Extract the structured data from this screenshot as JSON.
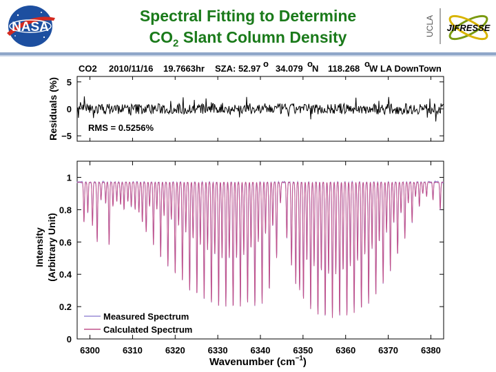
{
  "title": {
    "line1": "Spectral Fitting to Determine",
    "line2_prefix": "CO",
    "line2_sub": "2",
    "line2_suffix": " Slant Column Density"
  },
  "logos": {
    "nasa": "NASA",
    "ucla": "UCLA",
    "jifresse": "JIFRESSE"
  },
  "colors": {
    "title": "#1a7a1a",
    "measured": "#9a8cd6",
    "calculated": "#c0508a",
    "residual": "#000000"
  },
  "chart_data": [
    {
      "type": "line",
      "panel": "residuals",
      "header": {
        "species": "CO2",
        "date": "2010/11/16",
        "time": "19.7663hr",
        "sza": "SZA: 52.97",
        "deg": "o",
        "lat": "34.079",
        "lat_unit": "N",
        "lon": "118.268",
        "lon_unit": "W",
        "site": "LA DownTown"
      },
      "ylabel": "Residuals (%)",
      "ylim": [
        -6,
        6
      ],
      "yticks": [
        5,
        0,
        -5
      ],
      "ytick_labels": [
        "5",
        "0",
        "−5"
      ],
      "xlim": [
        6297,
        6383
      ],
      "annotation": "RMS = 0.5256%",
      "series": [
        {
          "values_description_rms": 0.5256
        }
      ]
    },
    {
      "type": "line",
      "panel": "spectrum",
      "ylabel_line1": "Intensity",
      "ylabel_line2": "(Arbitrary Unit)",
      "xlabel_prefix": "Wavenumber (cm",
      "xlabel_sup": "−1",
      "xlabel_suffix": ")",
      "xlim": [
        6297,
        6383
      ],
      "ylim": [
        0,
        1.1
      ],
      "xticks": [
        6300,
        6310,
        6320,
        6330,
        6340,
        6350,
        6360,
        6370,
        6380
      ],
      "yticks": [
        0,
        0.2,
        0.4,
        0.6,
        0.8,
        1
      ],
      "ytick_labels": [
        "0",
        "0.2",
        "0.4",
        "0.6",
        "0.8",
        "1"
      ],
      "legend_position": "bottom-left",
      "series": [
        {
          "name": "Measured Spectrum",
          "continuum": 0.97
        },
        {
          "name": "Calculated Spectrum",
          "continuum": 0.97
        }
      ],
      "absorption_lines": [
        [
          6298.6,
          0.72
        ],
        [
          6299.5,
          0.78
        ],
        [
          6300.6,
          0.7
        ],
        [
          6301.7,
          0.6
        ],
        [
          6302.6,
          0.86
        ],
        [
          6303.7,
          0.84
        ],
        [
          6304.5,
          0.58
        ],
        [
          6305.4,
          0.82
        ],
        [
          6306.3,
          0.85
        ],
        [
          6307.2,
          0.83
        ],
        [
          6308.0,
          0.8
        ],
        [
          6308.9,
          0.85
        ],
        [
          6309.7,
          0.82
        ],
        [
          6310.6,
          0.8
        ],
        [
          6311.5,
          0.78
        ],
        [
          6312.3,
          0.72
        ],
        [
          6313.2,
          0.66
        ],
        [
          6314.0,
          0.82
        ],
        [
          6314.9,
          0.58
        ],
        [
          6315.7,
          0.8
        ],
        [
          6316.6,
          0.5
        ],
        [
          6317.4,
          0.76
        ],
        [
          6318.3,
          0.45
        ],
        [
          6319.1,
          0.74
        ],
        [
          6320.0,
          0.4
        ],
        [
          6320.8,
          0.7
        ],
        [
          6321.7,
          0.36
        ],
        [
          6322.5,
          0.66
        ],
        [
          6323.4,
          0.3
        ],
        [
          6324.2,
          0.62
        ],
        [
          6325.1,
          0.27
        ],
        [
          6325.9,
          0.58
        ],
        [
          6326.8,
          0.25
        ],
        [
          6327.6,
          0.55
        ],
        [
          6328.5,
          0.22
        ],
        [
          6329.3,
          0.52
        ],
        [
          6330.2,
          0.2
        ],
        [
          6331.0,
          0.5
        ],
        [
          6331.9,
          0.2
        ],
        [
          6332.7,
          0.5
        ],
        [
          6333.6,
          0.19
        ],
        [
          6334.4,
          0.5
        ],
        [
          6335.3,
          0.2
        ],
        [
          6336.1,
          0.52
        ],
        [
          6337.0,
          0.22
        ],
        [
          6337.8,
          0.56
        ],
        [
          6338.7,
          0.2
        ],
        [
          6339.5,
          0.6
        ],
        [
          6340.4,
          0.22
        ],
        [
          6341.2,
          0.65
        ],
        [
          6342.1,
          0.3
        ],
        [
          6342.9,
          0.7
        ],
        [
          6343.8,
          0.5
        ],
        [
          6344.7,
          0.84
        ],
        [
          6346.2,
          0.62
        ],
        [
          6347.3,
          0.45
        ],
        [
          6348.3,
          0.34
        ],
        [
          6349.2,
          0.3
        ],
        [
          6350.1,
          0.24
        ],
        [
          6350.9,
          0.48
        ],
        [
          6351.8,
          0.18
        ],
        [
          6352.6,
          0.45
        ],
        [
          6353.5,
          0.15
        ],
        [
          6354.3,
          0.42
        ],
        [
          6355.2,
          0.13
        ],
        [
          6356.0,
          0.4
        ],
        [
          6356.9,
          0.13
        ],
        [
          6357.7,
          0.4
        ],
        [
          6358.6,
          0.14
        ],
        [
          6359.4,
          0.42
        ],
        [
          6360.3,
          0.14
        ],
        [
          6361.1,
          0.45
        ],
        [
          6362.0,
          0.16
        ],
        [
          6362.8,
          0.48
        ],
        [
          6363.7,
          0.18
        ],
        [
          6364.5,
          0.52
        ],
        [
          6365.4,
          0.22
        ],
        [
          6366.2,
          0.56
        ],
        [
          6367.1,
          0.27
        ],
        [
          6367.9,
          0.6
        ],
        [
          6368.8,
          0.34
        ],
        [
          6369.6,
          0.66
        ],
        [
          6370.5,
          0.42
        ],
        [
          6371.3,
          0.72
        ],
        [
          6372.2,
          0.52
        ],
        [
          6373.0,
          0.78
        ],
        [
          6373.9,
          0.62
        ],
        [
          6374.7,
          0.84
        ],
        [
          6375.6,
          0.72
        ],
        [
          6376.4,
          0.88
        ],
        [
          6377.3,
          0.82
        ],
        [
          6378.1,
          0.9
        ],
        [
          6379.0,
          0.88
        ],
        [
          6380.5,
          0.86
        ],
        [
          6382.2,
          0.8
        ]
      ]
    }
  ]
}
